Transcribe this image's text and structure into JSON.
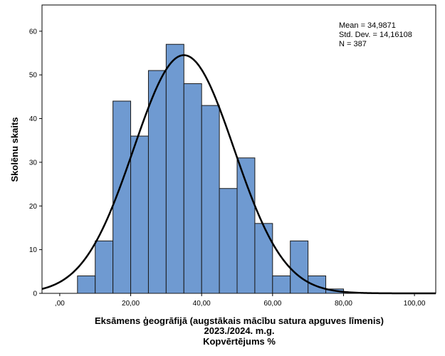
{
  "chart_data": {
    "type": "bar",
    "subtype": "histogram",
    "bin_width": 5,
    "bins": [
      {
        "start": 5,
        "end": 10,
        "count": 4
      },
      {
        "start": 10,
        "end": 15,
        "count": 12
      },
      {
        "start": 15,
        "end": 20,
        "count": 44
      },
      {
        "start": 20,
        "end": 25,
        "count": 36
      },
      {
        "start": 25,
        "end": 30,
        "count": 51
      },
      {
        "start": 30,
        "end": 35,
        "count": 57
      },
      {
        "start": 35,
        "end": 40,
        "count": 48
      },
      {
        "start": 40,
        "end": 45,
        "count": 43
      },
      {
        "start": 45,
        "end": 50,
        "count": 24
      },
      {
        "start": 50,
        "end": 55,
        "count": 31
      },
      {
        "start": 55,
        "end": 60,
        "count": 16
      },
      {
        "start": 60,
        "end": 65,
        "count": 4
      },
      {
        "start": 65,
        "end": 70,
        "count": 12
      },
      {
        "start": 70,
        "end": 75,
        "count": 4
      },
      {
        "start": 75,
        "end": 80,
        "count": 1
      }
    ],
    "normal_curve": {
      "mean": 34.9871,
      "sd": 14.16108,
      "n": 387
    },
    "stats_text": [
      "Mean = 34,9871",
      "Std. Dev. = 14,16108",
      "N = 387"
    ],
    "xlabel_lines": [
      "Eksāmens ģeogrāfijā (augstākais mācību satura apguves līmenis)",
      "2023./2024. m.g.",
      "Kopvērtējums %"
    ],
    "ylabel": "Skolēnu skaits",
    "x_ticks": [
      0,
      20,
      40,
      60,
      80,
      100
    ],
    "x_tick_labels": [
      ",00",
      "20,00",
      "40,00",
      "60,00",
      "80,00",
      "100,00"
    ],
    "y_ticks": [
      0,
      10,
      20,
      30,
      40,
      50,
      60
    ],
    "y_tick_labels": [
      "0",
      "10",
      "20",
      "30",
      "40",
      "50",
      "60"
    ],
    "xlim": [
      -5,
      106
    ],
    "ylim": [
      0,
      66
    ],
    "colors": {
      "bar_fill": "#6f9ad1",
      "bar_stroke": "#1a1a1a",
      "curve": "#000000",
      "background": "#ffffff"
    }
  }
}
